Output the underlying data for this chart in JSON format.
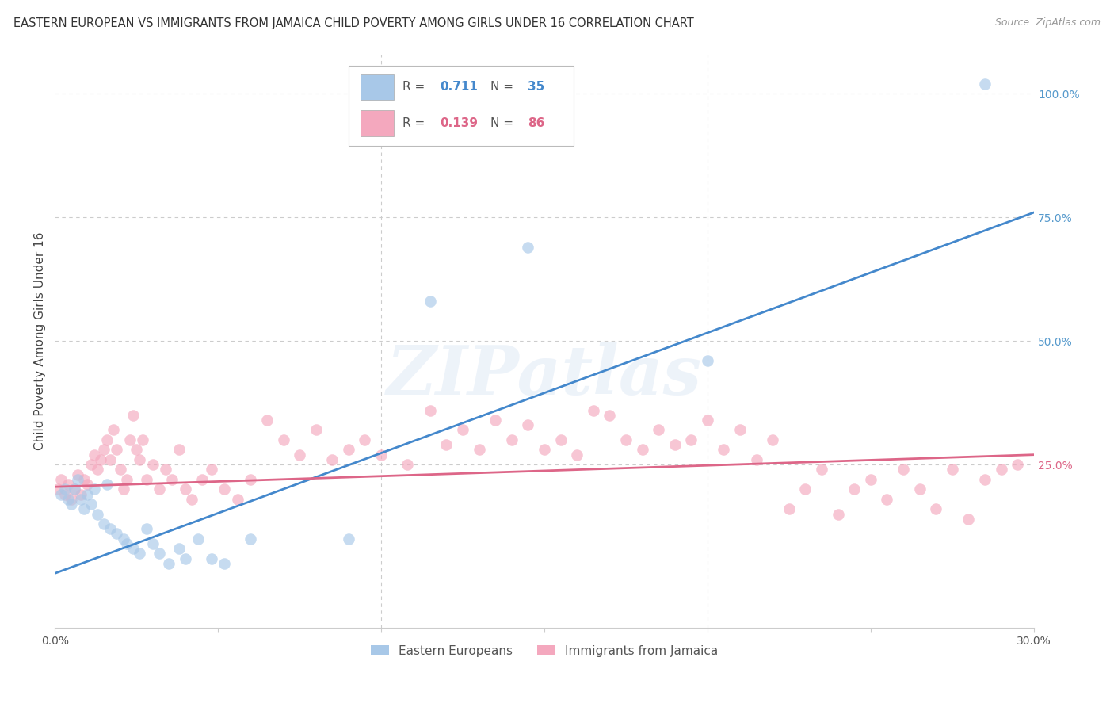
{
  "title": "EASTERN EUROPEAN VS IMMIGRANTS FROM JAMAICA CHILD POVERTY AMONG GIRLS UNDER 16 CORRELATION CHART",
  "source": "Source: ZipAtlas.com",
  "ylabel": "Child Poverty Among Girls Under 16",
  "xlim": [
    0.0,
    0.3
  ],
  "ylim": [
    -0.08,
    1.08
  ],
  "xtick_pos": [
    0.0,
    0.05,
    0.1,
    0.15,
    0.2,
    0.25,
    0.3
  ],
  "xtick_labels": [
    "0.0%",
    "",
    "",
    "",
    "",
    "",
    "30.0%"
  ],
  "ytick_pos": [
    0.0,
    0.25,
    0.5,
    0.75,
    1.0
  ],
  "ytick_labels": [
    "",
    "25.0%",
    "50.0%",
    "75.0%",
    "100.0%"
  ],
  "blue_color": "#a8c8e8",
  "pink_color": "#f4a8be",
  "blue_line_color": "#4488cc",
  "pink_line_color": "#dd6688",
  "blue_R": "0.711",
  "blue_N": "35",
  "pink_R": "0.139",
  "pink_N": "86",
  "blue_line_x": [
    0.0,
    0.3
  ],
  "blue_line_y": [
    0.03,
    0.76
  ],
  "pink_line_x": [
    0.0,
    0.3
  ],
  "pink_line_y": [
    0.205,
    0.27
  ],
  "blue_x": [
    0.002,
    0.003,
    0.004,
    0.005,
    0.006,
    0.007,
    0.008,
    0.009,
    0.01,
    0.011,
    0.012,
    0.013,
    0.015,
    0.016,
    0.017,
    0.019,
    0.021,
    0.022,
    0.024,
    0.026,
    0.028,
    0.03,
    0.032,
    0.035,
    0.038,
    0.04,
    0.044,
    0.048,
    0.052,
    0.06,
    0.09,
    0.115,
    0.145,
    0.2,
    0.285
  ],
  "blue_y": [
    0.19,
    0.2,
    0.18,
    0.17,
    0.2,
    0.22,
    0.18,
    0.16,
    0.19,
    0.17,
    0.2,
    0.15,
    0.13,
    0.21,
    0.12,
    0.11,
    0.1,
    0.09,
    0.08,
    0.07,
    0.12,
    0.09,
    0.07,
    0.05,
    0.08,
    0.06,
    0.1,
    0.06,
    0.05,
    0.1,
    0.1,
    0.58,
    0.69,
    0.46,
    1.02
  ],
  "pink_x": [
    0.001,
    0.002,
    0.003,
    0.004,
    0.005,
    0.006,
    0.007,
    0.008,
    0.009,
    0.01,
    0.011,
    0.012,
    0.013,
    0.014,
    0.015,
    0.016,
    0.017,
    0.018,
    0.019,
    0.02,
    0.021,
    0.022,
    0.023,
    0.024,
    0.025,
    0.026,
    0.027,
    0.028,
    0.03,
    0.032,
    0.034,
    0.036,
    0.038,
    0.04,
    0.042,
    0.045,
    0.048,
    0.052,
    0.056,
    0.06,
    0.065,
    0.07,
    0.075,
    0.08,
    0.085,
    0.09,
    0.095,
    0.1,
    0.108,
    0.115,
    0.12,
    0.125,
    0.13,
    0.135,
    0.14,
    0.145,
    0.15,
    0.155,
    0.16,
    0.165,
    0.17,
    0.175,
    0.18,
    0.185,
    0.19,
    0.195,
    0.2,
    0.205,
    0.21,
    0.215,
    0.22,
    0.225,
    0.23,
    0.235,
    0.24,
    0.245,
    0.25,
    0.255,
    0.26,
    0.265,
    0.27,
    0.275,
    0.28,
    0.285,
    0.29,
    0.295
  ],
  "pink_y": [
    0.2,
    0.22,
    0.19,
    0.21,
    0.18,
    0.2,
    0.23,
    0.19,
    0.22,
    0.21,
    0.25,
    0.27,
    0.24,
    0.26,
    0.28,
    0.3,
    0.26,
    0.32,
    0.28,
    0.24,
    0.2,
    0.22,
    0.3,
    0.35,
    0.28,
    0.26,
    0.3,
    0.22,
    0.25,
    0.2,
    0.24,
    0.22,
    0.28,
    0.2,
    0.18,
    0.22,
    0.24,
    0.2,
    0.18,
    0.22,
    0.34,
    0.3,
    0.27,
    0.32,
    0.26,
    0.28,
    0.3,
    0.27,
    0.25,
    0.36,
    0.29,
    0.32,
    0.28,
    0.34,
    0.3,
    0.33,
    0.28,
    0.3,
    0.27,
    0.36,
    0.35,
    0.3,
    0.28,
    0.32,
    0.29,
    0.3,
    0.34,
    0.28,
    0.32,
    0.26,
    0.3,
    0.16,
    0.2,
    0.24,
    0.15,
    0.2,
    0.22,
    0.18,
    0.24,
    0.2,
    0.16,
    0.24,
    0.14,
    0.22,
    0.24,
    0.25
  ],
  "watermark_text": "ZIPatlas",
  "legend_blue_label": "Eastern Europeans",
  "legend_pink_label": "Immigrants from Jamaica",
  "background_color": "#ffffff",
  "grid_color": "#cccccc",
  "title_fontsize": 10.5,
  "ylabel_fontsize": 11,
  "tick_fontsize": 10,
  "right_ytick_color": "#5599cc",
  "right_ytick_pink_color": "#dd6688",
  "scatter_size": 110,
  "scatter_alpha": 0.65,
  "line_width": 2.0
}
